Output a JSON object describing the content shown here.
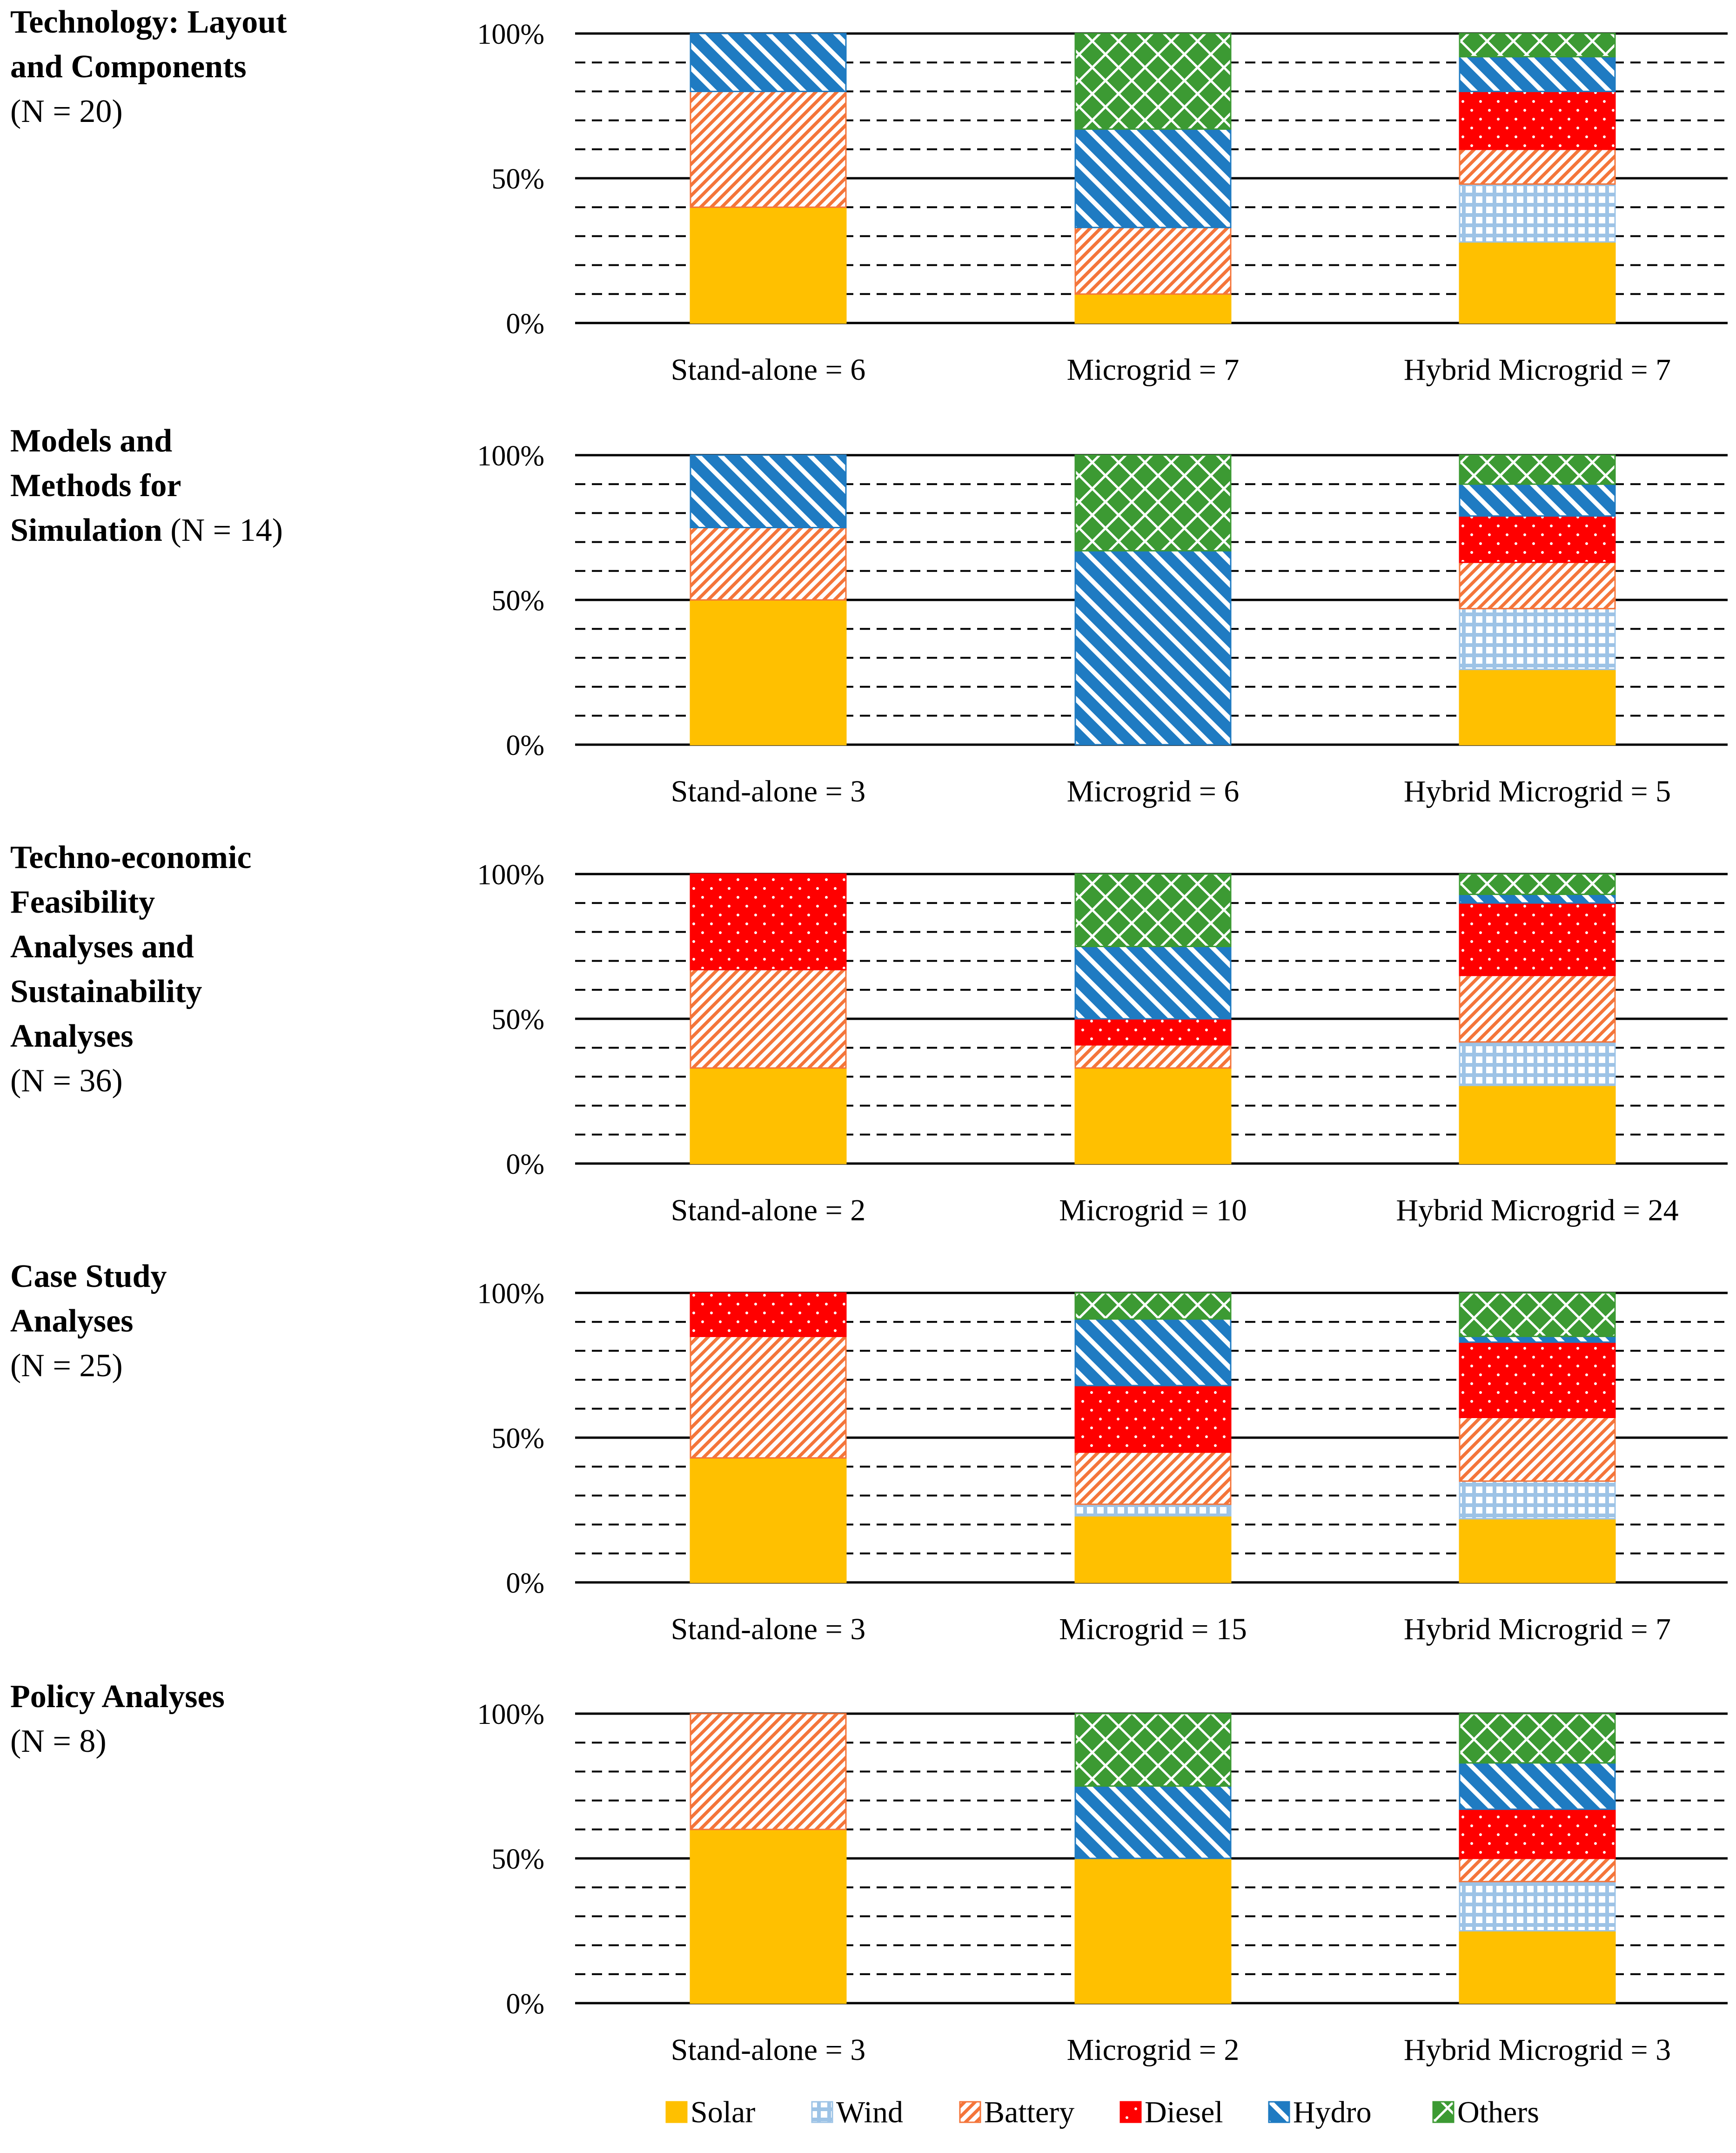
{
  "colors": {
    "Solar": "#FFC000",
    "Wind": "#9DC3E6",
    "Battery": "#F4753A",
    "Diesel": "#FF0000",
    "Hydro": "#1F7BC2",
    "Others": "#3C9A33"
  },
  "legend": {
    "position": "bottom-center",
    "items": [
      {
        "label": "Solar",
        "icon": "solid-swatch"
      },
      {
        "label": "Wind",
        "icon": "grid-hatch-swatch"
      },
      {
        "label": "Battery",
        "icon": "diagonal-hatch-swatch"
      },
      {
        "label": "Diesel",
        "icon": "dotted-swatch"
      },
      {
        "label": "Hydro",
        "icon": "wide-diagonal-swatch"
      },
      {
        "label": "Others",
        "icon": "diamond-lattice-swatch"
      }
    ]
  },
  "panels": [
    {
      "title_bold": [
        "Technology: Layout",
        "and Components"
      ],
      "title_tail": "",
      "title_note": "(N = 20)"
    },
    {
      "title_bold": [
        "Models and",
        "Methods for",
        "Simulation"
      ],
      "title_tail": " (N = 14)",
      "title_note": ""
    },
    {
      "title_bold": [
        "Techno-economic",
        "Feasibility",
        "Analyses and",
        "Sustainability",
        "Analyses"
      ],
      "title_tail": "",
      "title_note": "(N = 36)"
    },
    {
      "title_bold": [
        "Case Study",
        "Analyses"
      ],
      "title_tail": "",
      "title_note": "(N = 25)"
    },
    {
      "title_bold": [
        "Policy Analyses"
      ],
      "title_tail": "",
      "title_note": "(N = 8)"
    }
  ],
  "chart_data": [
    {
      "type": "bar",
      "stacked": true,
      "ylim": [
        0,
        100
      ],
      "yticks": [
        "0%",
        "50%",
        "100%"
      ],
      "grid": "solid at 0/50/100%, dashed every 10%",
      "categories": [
        "Stand-alone = 6",
        "Microgrid = 7",
        "Hybrid Microgrid = 7"
      ],
      "series": [
        {
          "name": "Solar",
          "values": [
            40,
            10,
            28
          ]
        },
        {
          "name": "Wind",
          "values": [
            0,
            0,
            20
          ]
        },
        {
          "name": "Battery",
          "values": [
            40,
            23,
            12
          ]
        },
        {
          "name": "Diesel",
          "values": [
            0,
            0,
            20
          ]
        },
        {
          "name": "Hydro",
          "values": [
            20,
            34,
            12
          ]
        },
        {
          "name": "Others",
          "values": [
            0,
            33,
            8
          ]
        }
      ]
    },
    {
      "type": "bar",
      "stacked": true,
      "ylim": [
        0,
        100
      ],
      "yticks": [
        "0%",
        "50%",
        "100%"
      ],
      "grid": "solid at 0/50/100%, dashed every 10%",
      "categories": [
        "Stand-alone = 3",
        "Microgrid = 6",
        "Hybrid Microgrid = 5"
      ],
      "series": [
        {
          "name": "Solar",
          "values": [
            50,
            0,
            26
          ]
        },
        {
          "name": "Wind",
          "values": [
            0,
            0,
            21
          ]
        },
        {
          "name": "Battery",
          "values": [
            25,
            0,
            16
          ]
        },
        {
          "name": "Diesel",
          "values": [
            0,
            0,
            16
          ]
        },
        {
          "name": "Hydro",
          "values": [
            25,
            67,
            11
          ]
        },
        {
          "name": "Others",
          "values": [
            0,
            33,
            10
          ]
        }
      ]
    },
    {
      "type": "bar",
      "stacked": true,
      "ylim": [
        0,
        100
      ],
      "yticks": [
        "0%",
        "50%",
        "100%"
      ],
      "grid": "solid at 0/50/100%, dashed every 10%",
      "categories": [
        "Stand-alone = 2",
        "Microgrid = 10",
        "Hybrid Microgrid = 24"
      ],
      "series": [
        {
          "name": "Solar",
          "values": [
            33,
            33,
            27
          ]
        },
        {
          "name": "Wind",
          "values": [
            0,
            0,
            15
          ]
        },
        {
          "name": "Battery",
          "values": [
            34,
            8,
            23
          ]
        },
        {
          "name": "Diesel",
          "values": [
            33,
            9,
            25
          ]
        },
        {
          "name": "Hydro",
          "values": [
            0,
            25,
            3
          ]
        },
        {
          "name": "Others",
          "values": [
            0,
            25,
            7
          ]
        }
      ]
    },
    {
      "type": "bar",
      "stacked": true,
      "ylim": [
        0,
        100
      ],
      "yticks": [
        "0%",
        "50%",
        "100%"
      ],
      "grid": "solid at 0/50/100%, dashed every 10%",
      "categories": [
        "Stand-alone = 3",
        "Microgrid = 15",
        "Hybrid Microgrid = 7"
      ],
      "series": [
        {
          "name": "Solar",
          "values": [
            43,
            23,
            22
          ]
        },
        {
          "name": "Wind",
          "values": [
            0,
            4,
            13
          ]
        },
        {
          "name": "Battery",
          "values": [
            42,
            18,
            22
          ]
        },
        {
          "name": "Diesel",
          "values": [
            15,
            23,
            26
          ]
        },
        {
          "name": "Hydro",
          "values": [
            0,
            23,
            2
          ]
        },
        {
          "name": "Others",
          "values": [
            0,
            9,
            15
          ]
        }
      ]
    },
    {
      "type": "bar",
      "stacked": true,
      "ylim": [
        0,
        100
      ],
      "yticks": [
        "0%",
        "50%",
        "100%"
      ],
      "grid": "solid at 0/50/100%, dashed every 10%",
      "categories": [
        "Stand-alone = 3",
        "Microgrid = 2",
        "Hybrid Microgrid = 3"
      ],
      "series": [
        {
          "name": "Solar",
          "values": [
            60,
            50,
            25
          ]
        },
        {
          "name": "Wind",
          "values": [
            0,
            0,
            17
          ]
        },
        {
          "name": "Battery",
          "values": [
            40,
            0,
            8
          ]
        },
        {
          "name": "Diesel",
          "values": [
            0,
            0,
            17
          ]
        },
        {
          "name": "Hydro",
          "values": [
            0,
            25,
            16
          ]
        },
        {
          "name": "Others",
          "values": [
            0,
            25,
            17
          ]
        }
      ]
    }
  ]
}
